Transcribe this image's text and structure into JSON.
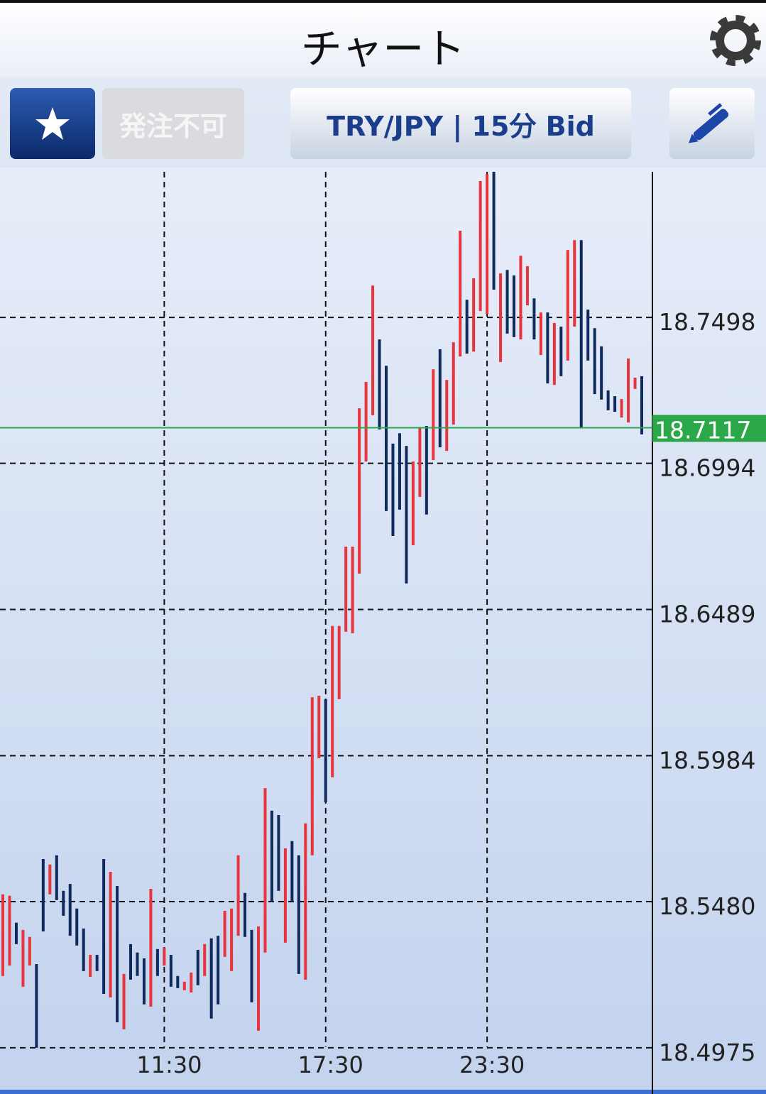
{
  "header": {
    "title": "チャート"
  },
  "toolbar": {
    "order_status": "発注不可",
    "instrument": "TRY/JPY | 15分 Bid"
  },
  "chart_data": {
    "type": "range-bar",
    "categories": [
      null,
      null,
      null,
      null,
      null,
      null,
      null,
      null,
      null,
      null,
      null,
      null,
      null,
      null,
      null,
      null,
      null,
      null,
      null,
      null,
      null,
      null,
      null,
      null,
      "11:30",
      null,
      null,
      null,
      null,
      null,
      null,
      null,
      null,
      null,
      null,
      null,
      null,
      null,
      null,
      null,
      null,
      null,
      null,
      null,
      null,
      null,
      null,
      null,
      "17:30",
      null,
      null,
      null,
      null,
      null,
      null,
      null,
      null,
      null,
      null,
      null,
      null,
      null,
      null,
      null,
      null,
      null,
      null,
      null,
      null,
      null,
      null,
      null,
      "23:30",
      null,
      null,
      null,
      null,
      null,
      null,
      null,
      null,
      null,
      null,
      null,
      null,
      null,
      null,
      null,
      null,
      null,
      null,
      null,
      null,
      null,
      null,
      null
    ],
    "high": [
      18.5505,
      18.55,
      18.5407,
      18.5382,
      18.5358,
      18.5264,
      18.5627,
      18.5608,
      18.564,
      18.5517,
      18.5541,
      18.5456,
      18.5387,
      18.5296,
      18.5296,
      18.5627,
      18.5583,
      18.5534,
      18.523,
      18.5333,
      18.5304,
      18.5284,
      18.5524,
      18.5316,
      18.5321,
      18.5296,
      18.5223,
      18.5203,
      18.5235,
      18.5313,
      18.5333,
      18.5353,
      18.5362,
      18.5448,
      18.5456,
      18.564,
      18.551,
      18.5382,
      18.5394,
      18.5872,
      18.5794,
      18.5779,
      18.5664,
      18.5689,
      18.564,
      18.575,
      18.6186,
      18.6191,
      18.6179,
      18.6432,
      18.6432,
      18.6706,
      18.6706,
      18.7184,
      18.7275,
      18.7608,
      18.7422,
      18.7331,
      18.7062,
      18.7098,
      18.7054,
      18.7,
      18.7118,
      18.7123,
      18.7319,
      18.7388,
      18.7282,
      18.7412,
      18.7797,
      18.7559,
      18.7633,
      18.7969,
      18.7993,
      18.8001,
      18.765,
      18.7662,
      18.7643,
      18.7711,
      18.7675,
      18.7564,
      18.7515,
      18.7515,
      18.7479,
      18.7466,
      18.7731,
      18.7765,
      18.7765,
      18.7525,
      18.7461,
      18.7398,
      18.7246,
      18.7226,
      18.7216,
      18.7356,
      18.729,
      18.7295
    ],
    "low": [
      18.5223,
      18.5259,
      18.5333,
      18.5186,
      18.5259,
      18.4975,
      18.5377,
      18.5505,
      18.5485,
      18.5431,
      18.5362,
      18.5328,
      18.524,
      18.522,
      18.524,
      18.5161,
      18.5149,
      18.5063,
      18.5039,
      18.521,
      18.5223,
      18.5125,
      18.5117,
      18.5223,
      18.5259,
      18.5186,
      18.5181,
      18.5174,
      18.5166,
      18.5191,
      18.5223,
      18.5076,
      18.5125,
      18.5289,
      18.524,
      18.5362,
      18.5358,
      18.5132,
      18.5034,
      18.5304,
      18.548,
      18.5517,
      18.5338,
      18.548,
      18.523,
      18.521,
      18.564,
      18.5975,
      18.5823,
      18.5909,
      18.6179,
      18.6412,
      18.6407,
      18.6613,
      18.7,
      18.716,
      18.7111,
      18.6829,
      18.6743,
      18.6834,
      18.6579,
      18.6711,
      18.6878,
      18.6817,
      18.7005,
      18.7049,
      18.7037,
      18.7128,
      18.7363,
      18.7373,
      18.738,
      18.752,
      18.751,
      18.7594,
      18.7344,
      18.7442,
      18.743,
      18.7422,
      18.754,
      18.7422,
      18.7368,
      18.727,
      18.7265,
      18.7295,
      18.7349,
      18.7466,
      18.7118,
      18.7349,
      18.7233,
      18.7214,
      18.7177,
      18.7172,
      18.7152,
      18.7135,
      18.7251,
      18.7094
    ],
    "rising": [
      true,
      true,
      false,
      true,
      true,
      false,
      false,
      true,
      false,
      false,
      false,
      false,
      false,
      true,
      false,
      false,
      true,
      false,
      true,
      false,
      false,
      false,
      true,
      false,
      true,
      false,
      false,
      true,
      true,
      false,
      true,
      false,
      false,
      true,
      true,
      true,
      false,
      false,
      true,
      true,
      false,
      false,
      true,
      false,
      false,
      true,
      true,
      true,
      false,
      true,
      true,
      true,
      true,
      true,
      true,
      true,
      false,
      false,
      false,
      false,
      false,
      true,
      true,
      false,
      true,
      false,
      true,
      true,
      true,
      false,
      true,
      true,
      true,
      false,
      true,
      false,
      false,
      true,
      true,
      false,
      true,
      false,
      true,
      false,
      true,
      true,
      false,
      false,
      false,
      false,
      false,
      false,
      true,
      true,
      true,
      false
    ],
    "up_color": "#e8343c",
    "down_color": "#0f2a5c",
    "ylim": [
      18.483,
      18.8001
    ],
    "yticks": [
      18.4975,
      {
        "value": 18.548,
        "label": "18.5480"
      },
      18.5984,
      18.6489,
      18.6994,
      18.7498
    ],
    "grid": true,
    "current_price": 18.7117,
    "current_price_color": "#2aa84a"
  }
}
